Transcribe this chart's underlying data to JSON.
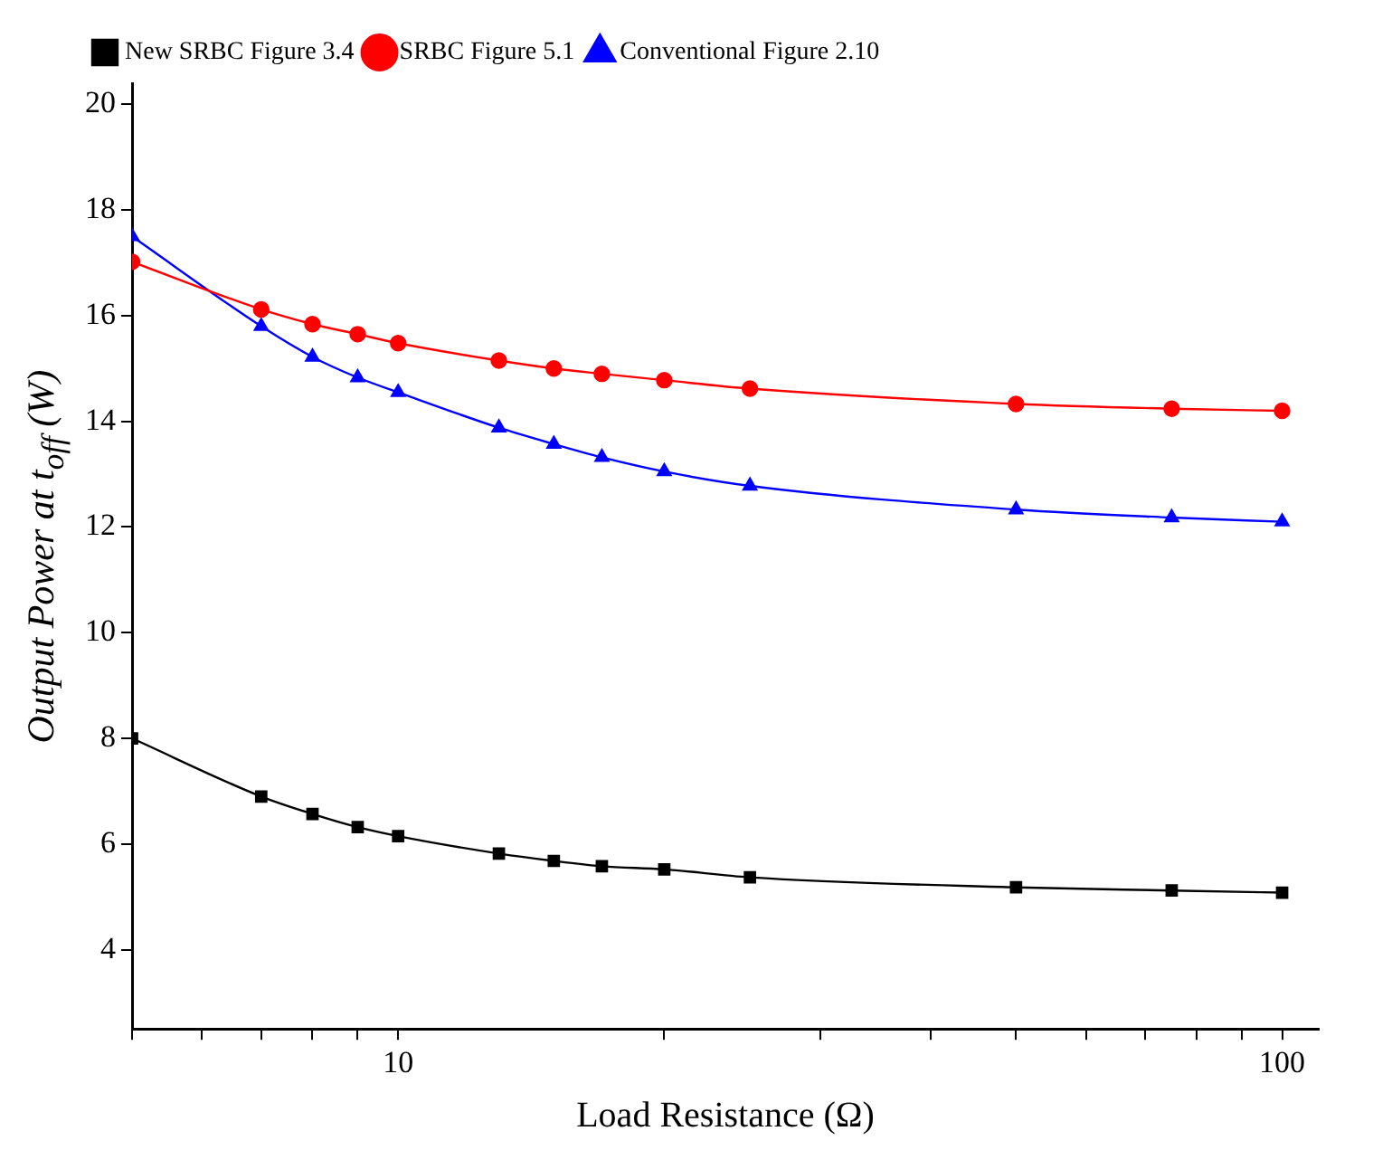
{
  "chart_data": {
    "type": "line",
    "xlabel": "Load Resistance (Ω)",
    "ylabel": "Output Power at t$_{off}$ (W)",
    "log": "x",
    "xlim": [
      5,
      110
    ],
    "ylim": [
      2.5,
      20.4
    ],
    "xticks": [
      {
        "value": 5,
        "label": null
      },
      {
        "value": 6,
        "label": null
      },
      {
        "value": 7,
        "label": null
      },
      {
        "value": 8,
        "label": null
      },
      {
        "value": 9,
        "label": null
      },
      10,
      {
        "value": 20,
        "label": null
      },
      {
        "value": 30,
        "label": null
      },
      {
        "value": 40,
        "label": null
      },
      {
        "value": 50,
        "label": null
      },
      {
        "value": 60,
        "label": null
      },
      {
        "value": 70,
        "label": null
      },
      {
        "value": 80,
        "label": null
      },
      {
        "value": 90,
        "label": null
      },
      100
    ],
    "yticks": [
      4,
      6,
      8,
      10,
      12,
      14,
      16,
      18,
      20
    ],
    "x": [
      5,
      7,
      8,
      9,
      10,
      13,
      15,
      17,
      20,
      25,
      50,
      75,
      100
    ],
    "series": [
      {
        "name": "New SRBC Figure 3.4",
        "color": "#000000",
        "marker": "square",
        "values": [
          8.0,
          6.9,
          6.57,
          6.32,
          6.15,
          5.82,
          5.68,
          5.58,
          5.52,
          5.37,
          5.18,
          5.12,
          5.08
        ]
      },
      {
        "name": "SRBC Figure 5.1",
        "color": "#ff0000",
        "marker": "circle",
        "values": [
          17.02,
          16.12,
          15.84,
          15.65,
          15.48,
          15.15,
          15.0,
          14.9,
          14.78,
          14.62,
          14.33,
          14.24,
          14.2
        ]
      },
      {
        "name": "Conventional Figure 2.10",
        "color": "#0000ff",
        "marker": "triangle",
        "values": [
          17.5,
          15.8,
          15.22,
          14.83,
          14.55,
          13.88,
          13.57,
          13.32,
          13.05,
          12.78,
          12.33,
          12.18,
          12.1
        ]
      }
    ],
    "legend": "top",
    "grid": false
  }
}
